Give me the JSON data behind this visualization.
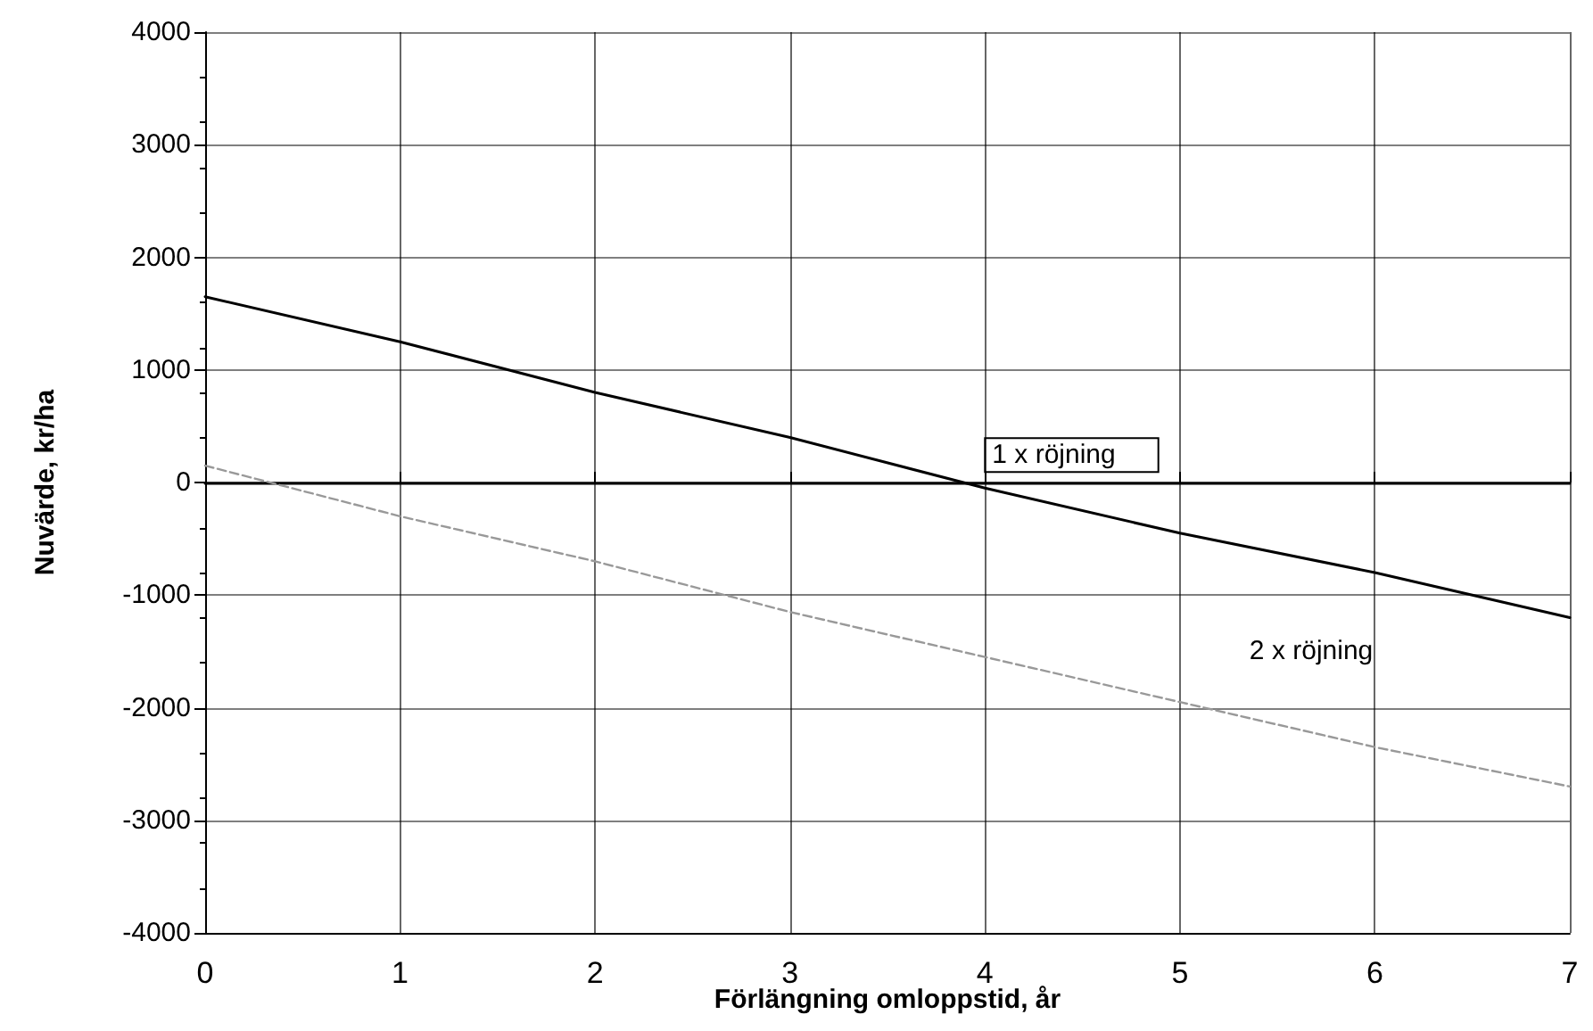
{
  "chart_data": {
    "type": "line",
    "xlabel": "Förlängning omloppstid, år",
    "ylabel": "Nuvärde, kr/ha",
    "x": [
      0,
      1,
      2,
      3,
      4,
      5,
      6,
      7
    ],
    "series": [
      {
        "name": "1 x röjning",
        "color": "#000000",
        "line_style": "solid",
        "values": [
          1650,
          1250,
          800,
          400,
          -50,
          -450,
          -800,
          -1200
        ]
      },
      {
        "name": "2 x röjning",
        "color": "#999999",
        "line_style": "dashed",
        "values": [
          150,
          -300,
          -700,
          -1150,
          -1550,
          -1950,
          -2350,
          -2700
        ]
      }
    ],
    "xlim": [
      0,
      7
    ],
    "xticks": [
      0,
      1,
      2,
      3,
      4,
      5,
      6,
      7
    ],
    "ylim": [
      -4000,
      4000
    ],
    "yticks": [
      -4000,
      -3000,
      -2000,
      -1000,
      0,
      1000,
      2000,
      3000,
      4000
    ],
    "grid": true,
    "legend": false,
    "marker": "none"
  }
}
